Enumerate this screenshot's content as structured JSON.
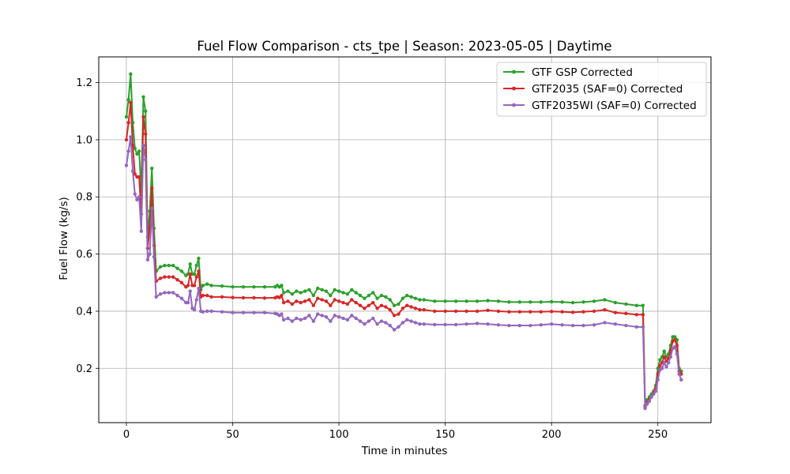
{
  "chart_data": {
    "type": "line",
    "title": "Fuel Flow Comparison - cts_tpe | Season: 2023-05-05 | Daytime",
    "xlabel": "Time in minutes",
    "ylabel": "Fuel Flow (kg/s)",
    "xlim": [
      -13,
      275
    ],
    "ylim": [
      0.01,
      1.29
    ],
    "xticks": [
      0,
      50,
      100,
      150,
      200,
      250
    ],
    "yticks": [
      0.2,
      0.4,
      0.6,
      0.8,
      1.0,
      1.2
    ],
    "grid": true,
    "legend_position": "top-right",
    "x": [
      0,
      1,
      2,
      3,
      4,
      5,
      6,
      7,
      8,
      9,
      10,
      11,
      12,
      13,
      14,
      16,
      18,
      20,
      22,
      24,
      26,
      28,
      29,
      30,
      31,
      32,
      33,
      34,
      35,
      36,
      38,
      40,
      45,
      50,
      55,
      60,
      65,
      70,
      71,
      72,
      73,
      74,
      76,
      78,
      80,
      82,
      84,
      86,
      88,
      90,
      92,
      94,
      96,
      98,
      100,
      102,
      104,
      106,
      108,
      110,
      112,
      114,
      116,
      118,
      120,
      122,
      124,
      126,
      128,
      130,
      132,
      134,
      136,
      138,
      140,
      145,
      150,
      155,
      160,
      165,
      170,
      175,
      180,
      185,
      190,
      195,
      200,
      205,
      210,
      215,
      220,
      225,
      230,
      235,
      240,
      243,
      244,
      245,
      246,
      247,
      248,
      249,
      250,
      251,
      252,
      253,
      254,
      255,
      256,
      257,
      258,
      259,
      260,
      261
    ],
    "series": [
      {
        "name": "GTF GSP Corrected",
        "color": "#2ca02c",
        "values": [
          1.08,
          1.14,
          1.23,
          1.06,
          0.97,
          0.95,
          0.96,
          0.82,
          1.15,
          1.1,
          0.66,
          0.75,
          0.9,
          0.69,
          0.54,
          0.555,
          0.56,
          0.56,
          0.56,
          0.55,
          0.54,
          0.525,
          0.53,
          0.565,
          0.53,
          0.53,
          0.56,
          0.585,
          0.475,
          0.49,
          0.495,
          0.49,
          0.488,
          0.485,
          0.485,
          0.485,
          0.485,
          0.485,
          0.49,
          0.485,
          0.49,
          0.465,
          0.47,
          0.46,
          0.47,
          0.465,
          0.47,
          0.475,
          0.455,
          0.48,
          0.475,
          0.47,
          0.455,
          0.475,
          0.47,
          0.465,
          0.46,
          0.475,
          0.465,
          0.455,
          0.445,
          0.455,
          0.465,
          0.445,
          0.455,
          0.45,
          0.44,
          0.42,
          0.425,
          0.445,
          0.455,
          0.45,
          0.445,
          0.44,
          0.44,
          0.435,
          0.435,
          0.435,
          0.435,
          0.435,
          0.437,
          0.435,
          0.432,
          0.432,
          0.432,
          0.432,
          0.433,
          0.432,
          0.43,
          0.432,
          0.435,
          0.44,
          0.43,
          0.425,
          0.42,
          0.42,
          0.07,
          0.09,
          0.1,
          0.11,
          0.12,
          0.14,
          0.2,
          0.23,
          0.24,
          0.26,
          0.24,
          0.25,
          0.28,
          0.31,
          0.31,
          0.3,
          0.2,
          0.19
        ]
      },
      {
        "name": "GTF2035 (SAF=0) Corrected",
        "color": "#d62728",
        "values": [
          1.0,
          1.06,
          1.13,
          0.98,
          0.88,
          0.87,
          0.87,
          0.74,
          1.08,
          1.02,
          0.62,
          0.69,
          0.83,
          0.63,
          0.505,
          0.515,
          0.52,
          0.52,
          0.52,
          0.51,
          0.5,
          0.485,
          0.49,
          0.53,
          0.49,
          0.49,
          0.52,
          0.54,
          0.45,
          0.455,
          0.455,
          0.45,
          0.45,
          0.448,
          0.447,
          0.447,
          0.446,
          0.447,
          0.45,
          0.448,
          0.455,
          0.43,
          0.435,
          0.425,
          0.435,
          0.43,
          0.435,
          0.44,
          0.42,
          0.445,
          0.44,
          0.435,
          0.42,
          0.44,
          0.435,
          0.43,
          0.425,
          0.44,
          0.43,
          0.42,
          0.41,
          0.42,
          0.43,
          0.41,
          0.42,
          0.415,
          0.405,
          0.385,
          0.39,
          0.41,
          0.42,
          0.415,
          0.41,
          0.405,
          0.405,
          0.4,
          0.4,
          0.4,
          0.4,
          0.4,
          0.403,
          0.4,
          0.398,
          0.398,
          0.398,
          0.398,
          0.399,
          0.398,
          0.396,
          0.398,
          0.4,
          0.405,
          0.395,
          0.392,
          0.388,
          0.388,
          0.065,
          0.08,
          0.09,
          0.1,
          0.115,
          0.13,
          0.18,
          0.21,
          0.22,
          0.24,
          0.225,
          0.235,
          0.26,
          0.295,
          0.3,
          0.28,
          0.19,
          0.18
        ]
      },
      {
        "name": "GTF2035WI (SAF=0) Corrected",
        "color": "#9467bd",
        "values": [
          0.91,
          0.96,
          1.01,
          0.89,
          0.81,
          0.79,
          0.8,
          0.68,
          0.98,
          0.93,
          0.58,
          0.6,
          0.76,
          0.59,
          0.45,
          0.46,
          0.465,
          0.465,
          0.465,
          0.455,
          0.445,
          0.43,
          0.43,
          0.47,
          0.41,
          0.405,
          0.44,
          0.48,
          0.4,
          0.398,
          0.4,
          0.4,
          0.398,
          0.395,
          0.395,
          0.395,
          0.395,
          0.392,
          0.39,
          0.385,
          0.39,
          0.37,
          0.375,
          0.365,
          0.375,
          0.37,
          0.375,
          0.385,
          0.365,
          0.39,
          0.385,
          0.38,
          0.365,
          0.385,
          0.38,
          0.375,
          0.37,
          0.385,
          0.375,
          0.365,
          0.355,
          0.365,
          0.375,
          0.355,
          0.365,
          0.36,
          0.35,
          0.335,
          0.345,
          0.36,
          0.37,
          0.365,
          0.36,
          0.355,
          0.355,
          0.353,
          0.353,
          0.353,
          0.355,
          0.357,
          0.355,
          0.352,
          0.35,
          0.35,
          0.35,
          0.352,
          0.355,
          0.352,
          0.35,
          0.35,
          0.352,
          0.36,
          0.355,
          0.35,
          0.345,
          0.345,
          0.06,
          0.075,
          0.085,
          0.1,
          0.11,
          0.12,
          0.16,
          0.195,
          0.2,
          0.22,
          0.205,
          0.22,
          0.24,
          0.27,
          0.275,
          0.25,
          0.18,
          0.16
        ]
      }
    ]
  }
}
